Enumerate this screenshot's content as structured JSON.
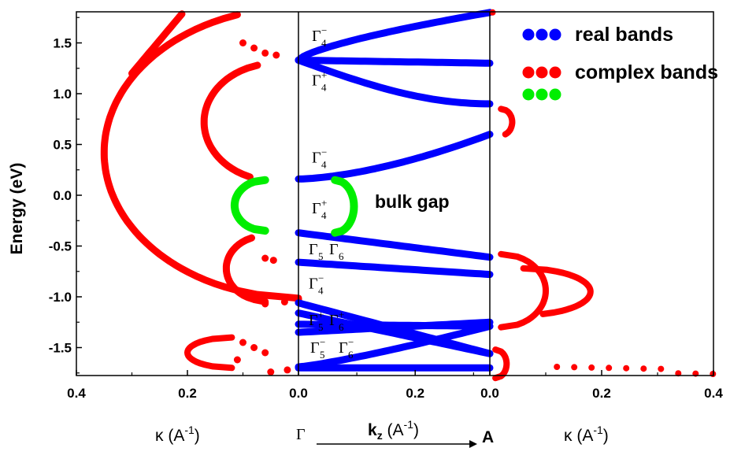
{
  "chart_data": {
    "type": "scatter",
    "ylabel": "Energy (eV)",
    "ylim": [
      -1.8,
      1.8
    ],
    "yticks": [
      "1.5",
      "1.0",
      "0.5",
      "0.0",
      "-0.5",
      "-1.0",
      "-1.5"
    ],
    "panels": [
      {
        "id": "left",
        "xlabel": "κ (A⁻¹)",
        "xlim": [
          0.4,
          0.0
        ],
        "xticks": [
          "0.4",
          "0.2",
          "0.0"
        ]
      },
      {
        "id": "middle",
        "xlabel": "kz (A⁻¹)",
        "xticks": [
          "0.0",
          "0.2"
        ],
        "start_label": "Γ",
        "end_label": "A"
      },
      {
        "id": "right",
        "xlabel": "κ (A⁻¹)",
        "xlim": [
          0.0,
          0.4
        ],
        "xticks": [
          "0.0",
          "0.2",
          "0.4"
        ]
      }
    ],
    "legend": {
      "position": "top-right",
      "entries": [
        {
          "label": "real bands",
          "color": "#0000ff"
        },
        {
          "label": "complex bands",
          "color": "#ff0000"
        },
        {
          "label": "",
          "color": "#00ee00"
        }
      ]
    },
    "annotation": "bulk gap",
    "symmetry_labels": [
      {
        "base": "Γ",
        "sub": "4",
        "sup": "−",
        "energy": 1.52
      },
      {
        "base": "Γ",
        "sub": "4",
        "sup": "+",
        "energy": 1.08
      },
      {
        "base": "Γ",
        "sub": "4",
        "sup": "−",
        "energy": 0.32
      },
      {
        "base": "Γ",
        "sub": "4",
        "sup": "+",
        "energy": -0.18
      },
      {
        "base": "Γ",
        "sub": "5",
        "sup": "",
        "energy": -0.58
      },
      {
        "base": "Γ",
        "sub": "6",
        "sup": "",
        "energy": -0.58
      },
      {
        "base": "Γ",
        "sub": "4",
        "sup": "−",
        "energy": -0.92
      },
      {
        "base": "Γ",
        "sub": "5",
        "sup": "+",
        "energy": -1.28
      },
      {
        "base": "Γ",
        "sub": "6",
        "sup": "+",
        "energy": -1.28
      },
      {
        "base": "Γ",
        "sub": "5",
        "sup": "−",
        "energy": -1.55
      },
      {
        "base": "Γ",
        "sub": "6",
        "sup": "−",
        "energy": -1.55
      }
    ],
    "colors": {
      "real": "#0000ff",
      "complex": "#ff0000",
      "complex_gap": "#00ee00"
    }
  }
}
